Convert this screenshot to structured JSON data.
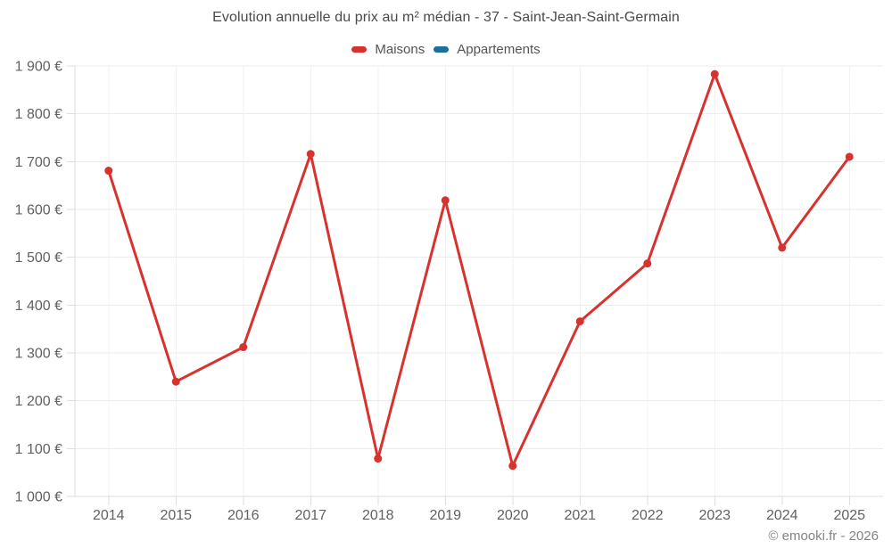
{
  "header": {
    "title": "Evolution annuelle du prix au m² médian - 37 - Saint-Jean-Saint-Germain"
  },
  "legend": {
    "items": [
      {
        "label": "Maisons",
        "color": "#d8322f"
      },
      {
        "label": "Appartements",
        "color": "#1c6f9f"
      }
    ]
  },
  "footer": {
    "copyright": "© emooki.fr - 2026"
  },
  "chart_data": {
    "type": "line",
    "title": "Evolution annuelle du prix au m² médian - 37 - Saint-Jean-Saint-Germain",
    "categories": [
      "2014",
      "2015",
      "2016",
      "2017",
      "2018",
      "2019",
      "2020",
      "2021",
      "2022",
      "2023",
      "2024",
      "2025"
    ],
    "series": [
      {
        "name": "Maisons",
        "color": "#d8322f",
        "values": [
          1681,
          1240,
          1312,
          1716,
          1079,
          1619,
          1064,
          1366,
          1487,
          1883,
          1520,
          1710
        ]
      },
      {
        "name": "Appartements",
        "color": "#1c6f9f",
        "values": []
      }
    ],
    "xlabel": "",
    "ylabel": "",
    "ylim": [
      1000,
      1900
    ],
    "ytick_step": 100,
    "yticks": [
      1000,
      1100,
      1200,
      1300,
      1400,
      1500,
      1600,
      1700,
      1800,
      1900
    ],
    "ytick_labels": [
      "1 000 €",
      "1 100 €",
      "1 200 €",
      "1 300 €",
      "1 400 €",
      "1 500 €",
      "1 600 €",
      "1 700 €",
      "1 800 €",
      "1 900 €"
    ],
    "grid": true,
    "legend_position": "top",
    "marker_radius": 4.5,
    "line_width": 3
  },
  "colors": {
    "background": "#ffffff",
    "grid_horizontal": "#ebebeb",
    "grid_vertical": "#f2f2f2",
    "axis_line": "#dedede",
    "axis_tick": "#dedede",
    "axis_label_text": "#616161",
    "title_text": "#4a4a4a",
    "legend_text": "#545454",
    "copyright_text": "#848484"
  }
}
